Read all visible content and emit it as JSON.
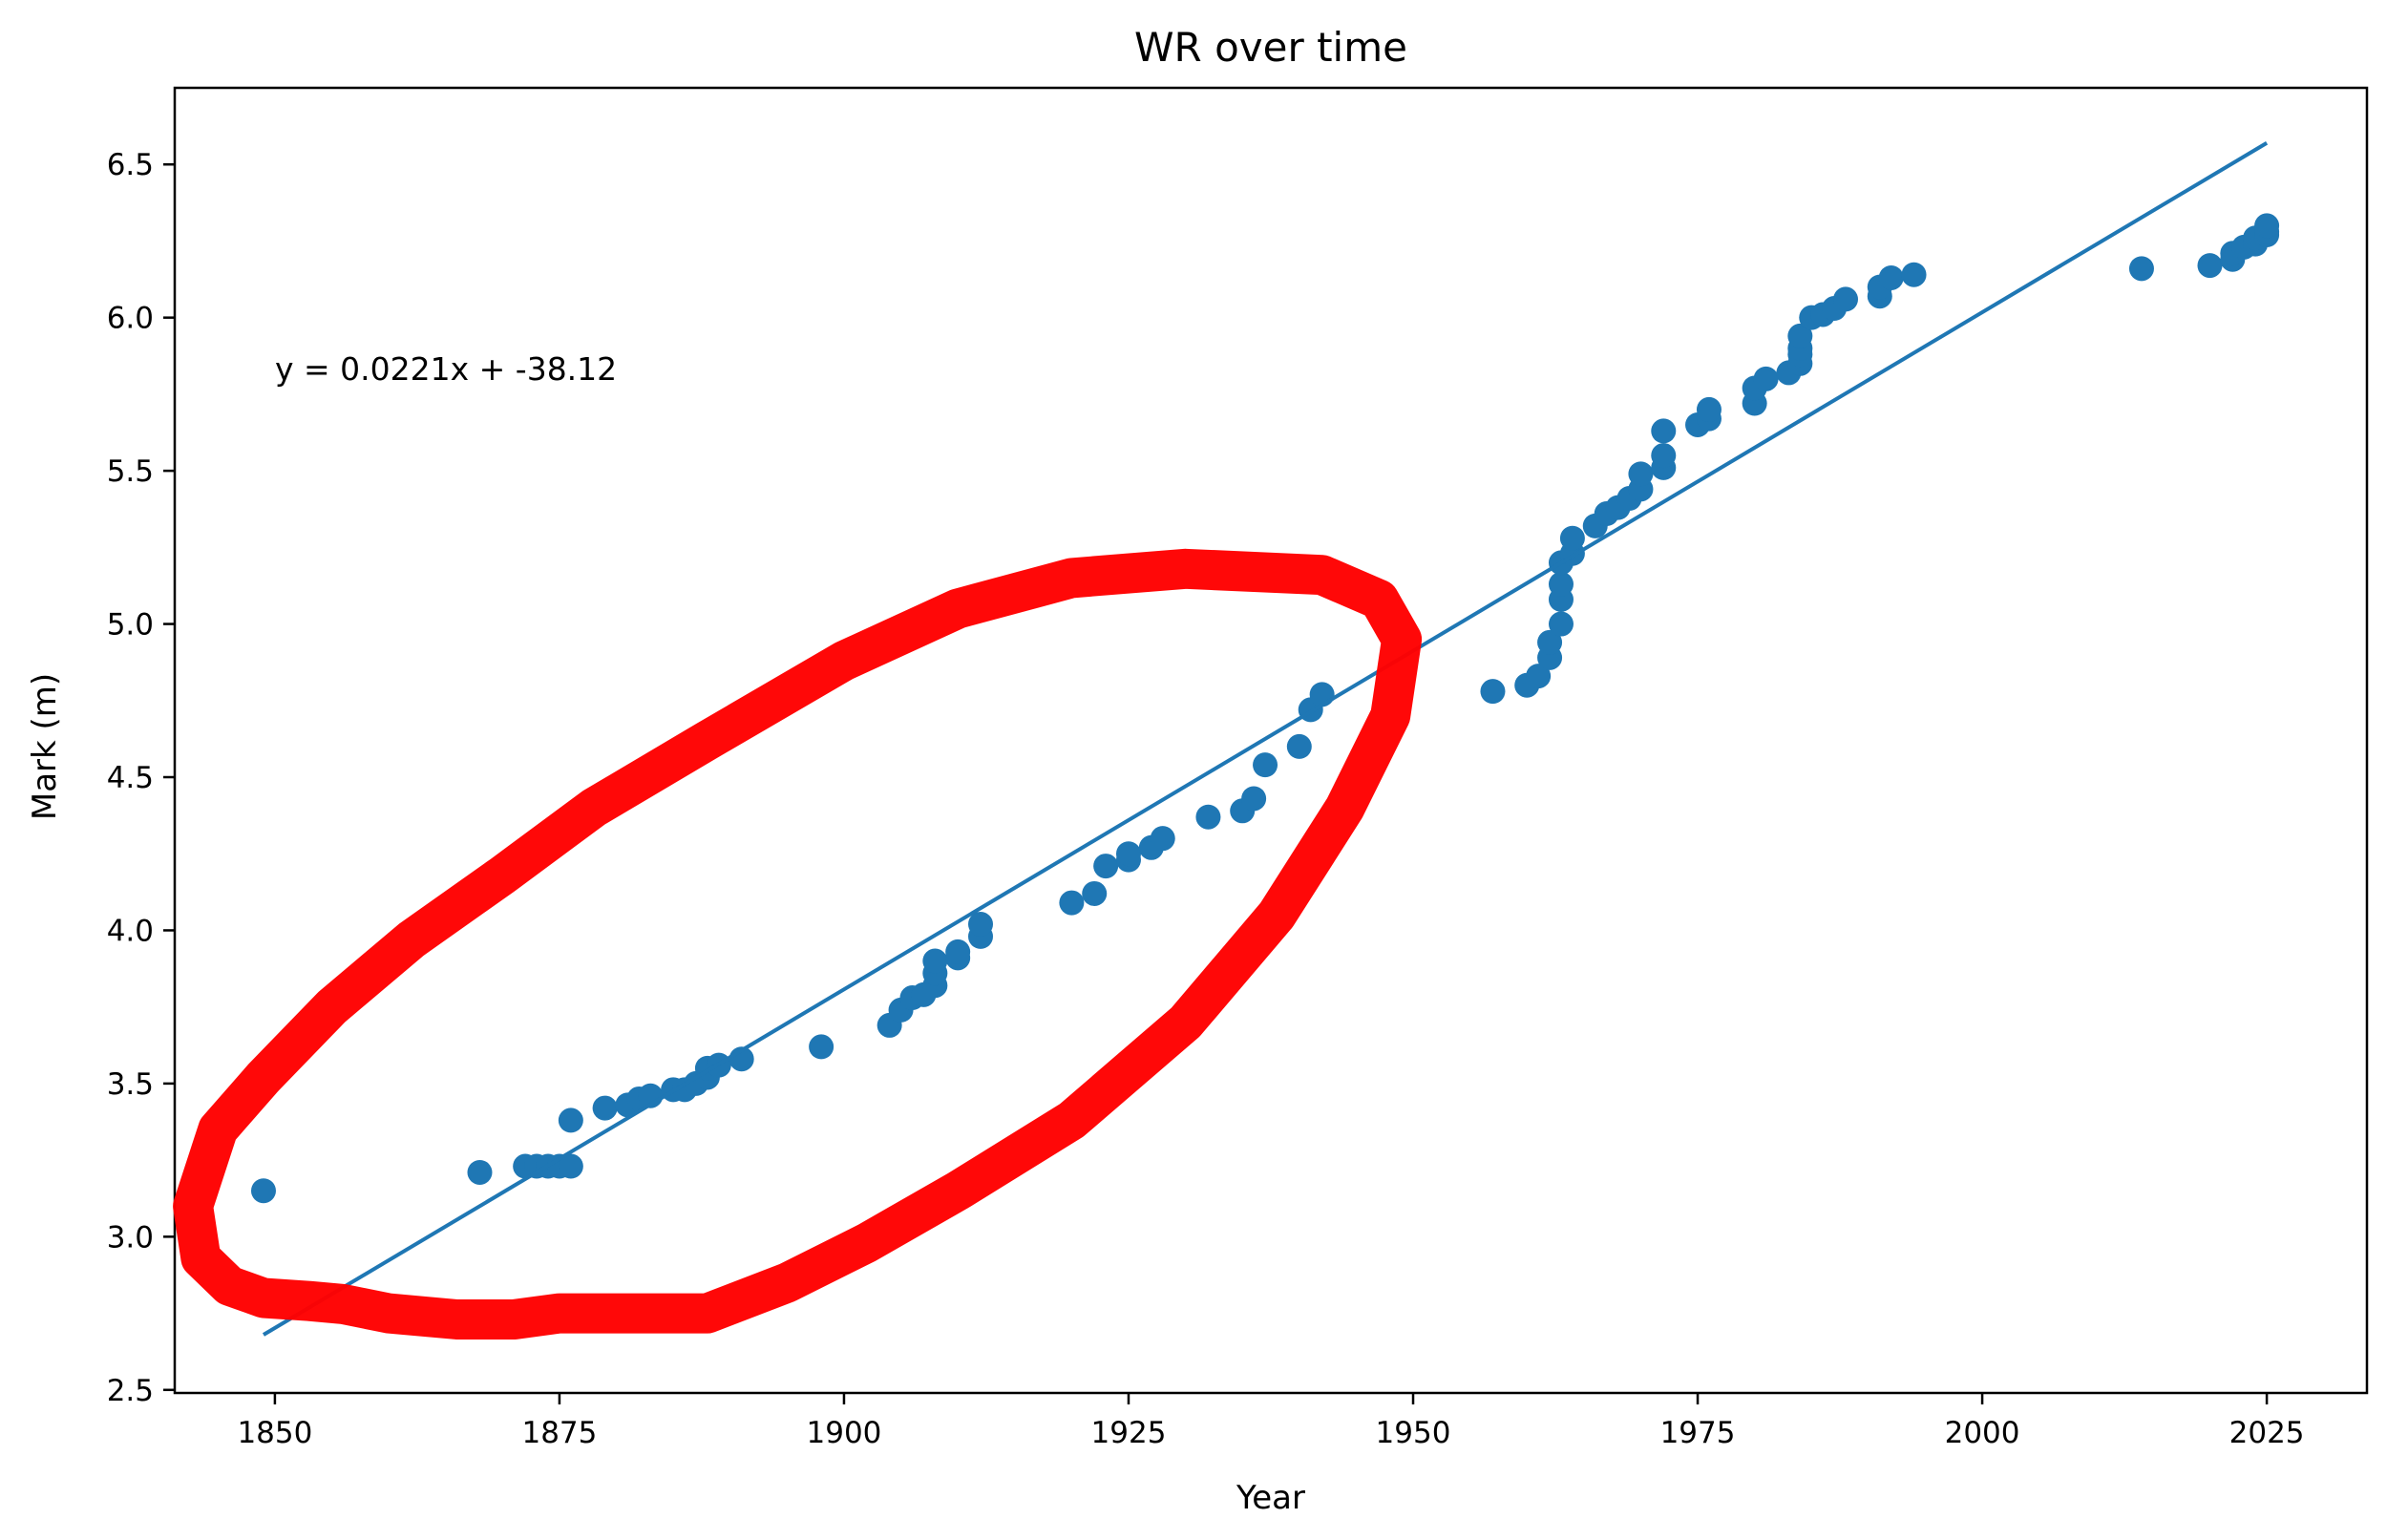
{
  "chart_data": {
    "type": "scatter",
    "title": "WR over time",
    "xlabel": "Year",
    "ylabel": "Mark (m)",
    "xlim": [
      1841.2,
      2033.8
    ],
    "ylim": [
      2.49,
      6.75
    ],
    "xticks": [
      1850,
      1875,
      1900,
      1925,
      1950,
      1975,
      2000,
      2025
    ],
    "xtick_labels": [
      "1850",
      "1875",
      "1900",
      "1925",
      "1950",
      "1975",
      "2000",
      "2025"
    ],
    "yticks": [
      2.5,
      3.0,
      3.5,
      4.0,
      4.5,
      5.0,
      5.5,
      6.0,
      6.5
    ],
    "ytick_labels": [
      "2.5",
      "3.0",
      "3.5",
      "4.0",
      "4.5",
      "5.0",
      "5.5",
      "6.0",
      "6.5"
    ],
    "grid": false,
    "annotation": "y = 0.0221x + -38.12",
    "colors": {
      "series": "#1f77b4",
      "highlight": "#ff0000"
    },
    "series": [
      {
        "type": "scatter",
        "x": [
          1849,
          1868,
          1872,
          1873,
          1874,
          1875,
          1876,
          1876,
          1879,
          1881,
          1882,
          1883,
          1885,
          1886,
          1887,
          1888,
          1888,
          1889,
          1891,
          1898,
          1904,
          1905,
          1906,
          1907,
          1908,
          1908,
          1908,
          1910,
          1910,
          1912,
          1912,
          1920,
          1922,
          1923,
          1925,
          1925,
          1927,
          1928,
          1932,
          1935,
          1936,
          1937,
          1940,
          1941,
          1942,
          1957,
          1960,
          1961,
          1962,
          1962,
          1963,
          1963,
          1963,
          1963,
          1964,
          1964,
          1966,
          1967,
          1968,
          1969,
          1970,
          1970,
          1972,
          1972,
          1972,
          1975,
          1976,
          1976,
          1980,
          1980,
          1981,
          1983,
          1984,
          1984,
          1984,
          1984,
          1985,
          1986,
          1987,
          1988,
          1991,
          1991,
          1992,
          1994,
          2014,
          2020,
          2022,
          2022,
          2023,
          2024,
          2024,
          2025,
          2025,
          2025
        ],
        "y": [
          3.15,
          3.21,
          3.23,
          3.23,
          3.23,
          3.23,
          3.23,
          3.38,
          3.42,
          3.43,
          3.45,
          3.46,
          3.48,
          3.48,
          3.5,
          3.52,
          3.55,
          3.56,
          3.58,
          3.62,
          3.69,
          3.74,
          3.78,
          3.79,
          3.82,
          3.86,
          3.9,
          3.91,
          3.93,
          3.98,
          4.02,
          4.09,
          4.12,
          4.21,
          4.23,
          4.25,
          4.27,
          4.3,
          4.37,
          4.39,
          4.43,
          4.54,
          4.6,
          4.72,
          4.77,
          4.78,
          4.8,
          4.83,
          4.89,
          4.94,
          5.0,
          5.08,
          5.13,
          5.2,
          5.23,
          5.28,
          5.32,
          5.36,
          5.38,
          5.41,
          5.44,
          5.49,
          5.51,
          5.55,
          5.63,
          5.65,
          5.67,
          5.7,
          5.72,
          5.77,
          5.8,
          5.82,
          5.85,
          5.88,
          5.9,
          5.94,
          6.0,
          6.01,
          6.03,
          6.06,
          6.07,
          6.1,
          6.13,
          6.14,
          6.16,
          6.17,
          6.19,
          6.21,
          6.23,
          6.24,
          6.26,
          6.27,
          6.28,
          6.3
        ]
      },
      {
        "type": "line",
        "x": [
          1849,
          2025
        ],
        "y": [
          2.68,
          6.57
        ]
      }
    ]
  }
}
